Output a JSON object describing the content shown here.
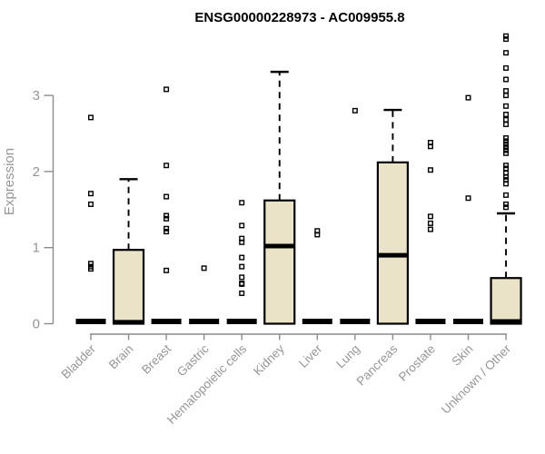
{
  "header": {
    "title": "ENSG00000228973 - AC009955.8"
  },
  "colors": {
    "background": "#ffffff",
    "box_fill": "#EAE3C8",
    "box_stroke": "#000000",
    "median": "#000000",
    "whisker": "#000000",
    "outlier_stroke": "#000000",
    "axis": "#8b8b8b",
    "tick_label": "#969696",
    "title": "#000000"
  },
  "chart_data": {
    "type": "boxplot",
    "title": "ENSG00000228973 - AC009955.8",
    "xlabel": "",
    "ylabel": "Expression",
    "ylim": [
      0,
      3.9
    ],
    "yticks": [
      0,
      1,
      2,
      3
    ],
    "grid": false,
    "legend": "none",
    "categories": [
      "Bladder",
      "Brain",
      "Breast",
      "Gastric",
      "Hematopoietic cells",
      "Kidney",
      "Liver",
      "Lung",
      "Pancreas",
      "Prostate",
      "Skin",
      "Unknown / Other"
    ],
    "series": [
      {
        "name": "Bladder",
        "id": "bladder",
        "collapsed": true,
        "q1": 0,
        "median": 0.02,
        "q3": 0.05,
        "whisker_low": 0,
        "whisker_high": 0.05,
        "outliers": [
          2.71,
          1.71,
          1.57,
          0.79,
          0.75,
          0.72
        ]
      },
      {
        "name": "Brain",
        "id": "brain",
        "collapsed": false,
        "q1": 0,
        "median": 0.02,
        "q3": 0.97,
        "whisker_low": 0,
        "whisker_high": 1.9,
        "outliers": []
      },
      {
        "name": "Breast",
        "id": "breast",
        "collapsed": true,
        "q1": 0,
        "median": 0.02,
        "q3": 0.05,
        "whisker_low": 0,
        "whisker_high": 0.05,
        "outliers": [
          3.08,
          2.08,
          1.67,
          1.42,
          1.38,
          1.25,
          1.21,
          0.7
        ]
      },
      {
        "name": "Gastric",
        "id": "gastric",
        "collapsed": true,
        "q1": 0,
        "median": 0.02,
        "q3": 0.05,
        "whisker_low": 0,
        "whisker_high": 0.05,
        "outliers": [
          0.73
        ]
      },
      {
        "name": "Hematopoietic cells",
        "id": "hematopoietic-cells",
        "collapsed": true,
        "q1": 0,
        "median": 0.02,
        "q3": 0.05,
        "whisker_low": 0,
        "whisker_high": 0.05,
        "outliers": [
          1.59,
          1.29,
          1.12,
          1.07,
          0.87,
          0.75,
          0.61,
          0.53,
          0.52,
          0.4
        ]
      },
      {
        "name": "Kidney",
        "id": "kidney",
        "collapsed": false,
        "q1": 0,
        "median": 1.02,
        "q3": 1.62,
        "whisker_low": 0,
        "whisker_high": 3.31,
        "outliers": []
      },
      {
        "name": "Liver",
        "id": "liver",
        "collapsed": true,
        "q1": 0,
        "median": 0.02,
        "q3": 0.05,
        "whisker_low": 0,
        "whisker_high": 0.05,
        "outliers": [
          1.22,
          1.17
        ]
      },
      {
        "name": "Lung",
        "id": "lung",
        "collapsed": true,
        "q1": 0,
        "median": 0.02,
        "q3": 0.05,
        "whisker_low": 0,
        "whisker_high": 0.05,
        "outliers": [
          2.8
        ]
      },
      {
        "name": "Pancreas",
        "id": "pancreas",
        "collapsed": false,
        "q1": 0,
        "median": 0.9,
        "q3": 2.12,
        "whisker_low": 0,
        "whisker_high": 2.81,
        "outliers": []
      },
      {
        "name": "Prostate",
        "id": "prostate",
        "collapsed": true,
        "q1": 0,
        "median": 0.02,
        "q3": 0.05,
        "whisker_low": 0,
        "whisker_high": 0.05,
        "outliers": [
          2.38,
          2.33,
          2.02,
          1.41,
          1.32,
          1.24
        ]
      },
      {
        "name": "Skin",
        "id": "skin",
        "collapsed": true,
        "q1": 0,
        "median": 0.02,
        "q3": 0.05,
        "whisker_low": 0,
        "whisker_high": 0.05,
        "outliers": [
          2.97,
          1.65
        ]
      },
      {
        "name": "Unknown / Other",
        "id": "unknown-other",
        "collapsed": false,
        "q1": 0,
        "median": 0.03,
        "q3": 0.6,
        "whisker_low": 0,
        "whisker_high": 1.45,
        "outliers": [
          3.78,
          3.74,
          3.56,
          3.36,
          3.21,
          3.06,
          3.0,
          2.86,
          2.75,
          2.68,
          2.62,
          2.44,
          2.4,
          2.36,
          2.32,
          2.28,
          2.24,
          2.08,
          2.04,
          1.98,
          1.93,
          1.89,
          1.84,
          1.69,
          1.57,
          1.53
        ]
      }
    ]
  }
}
